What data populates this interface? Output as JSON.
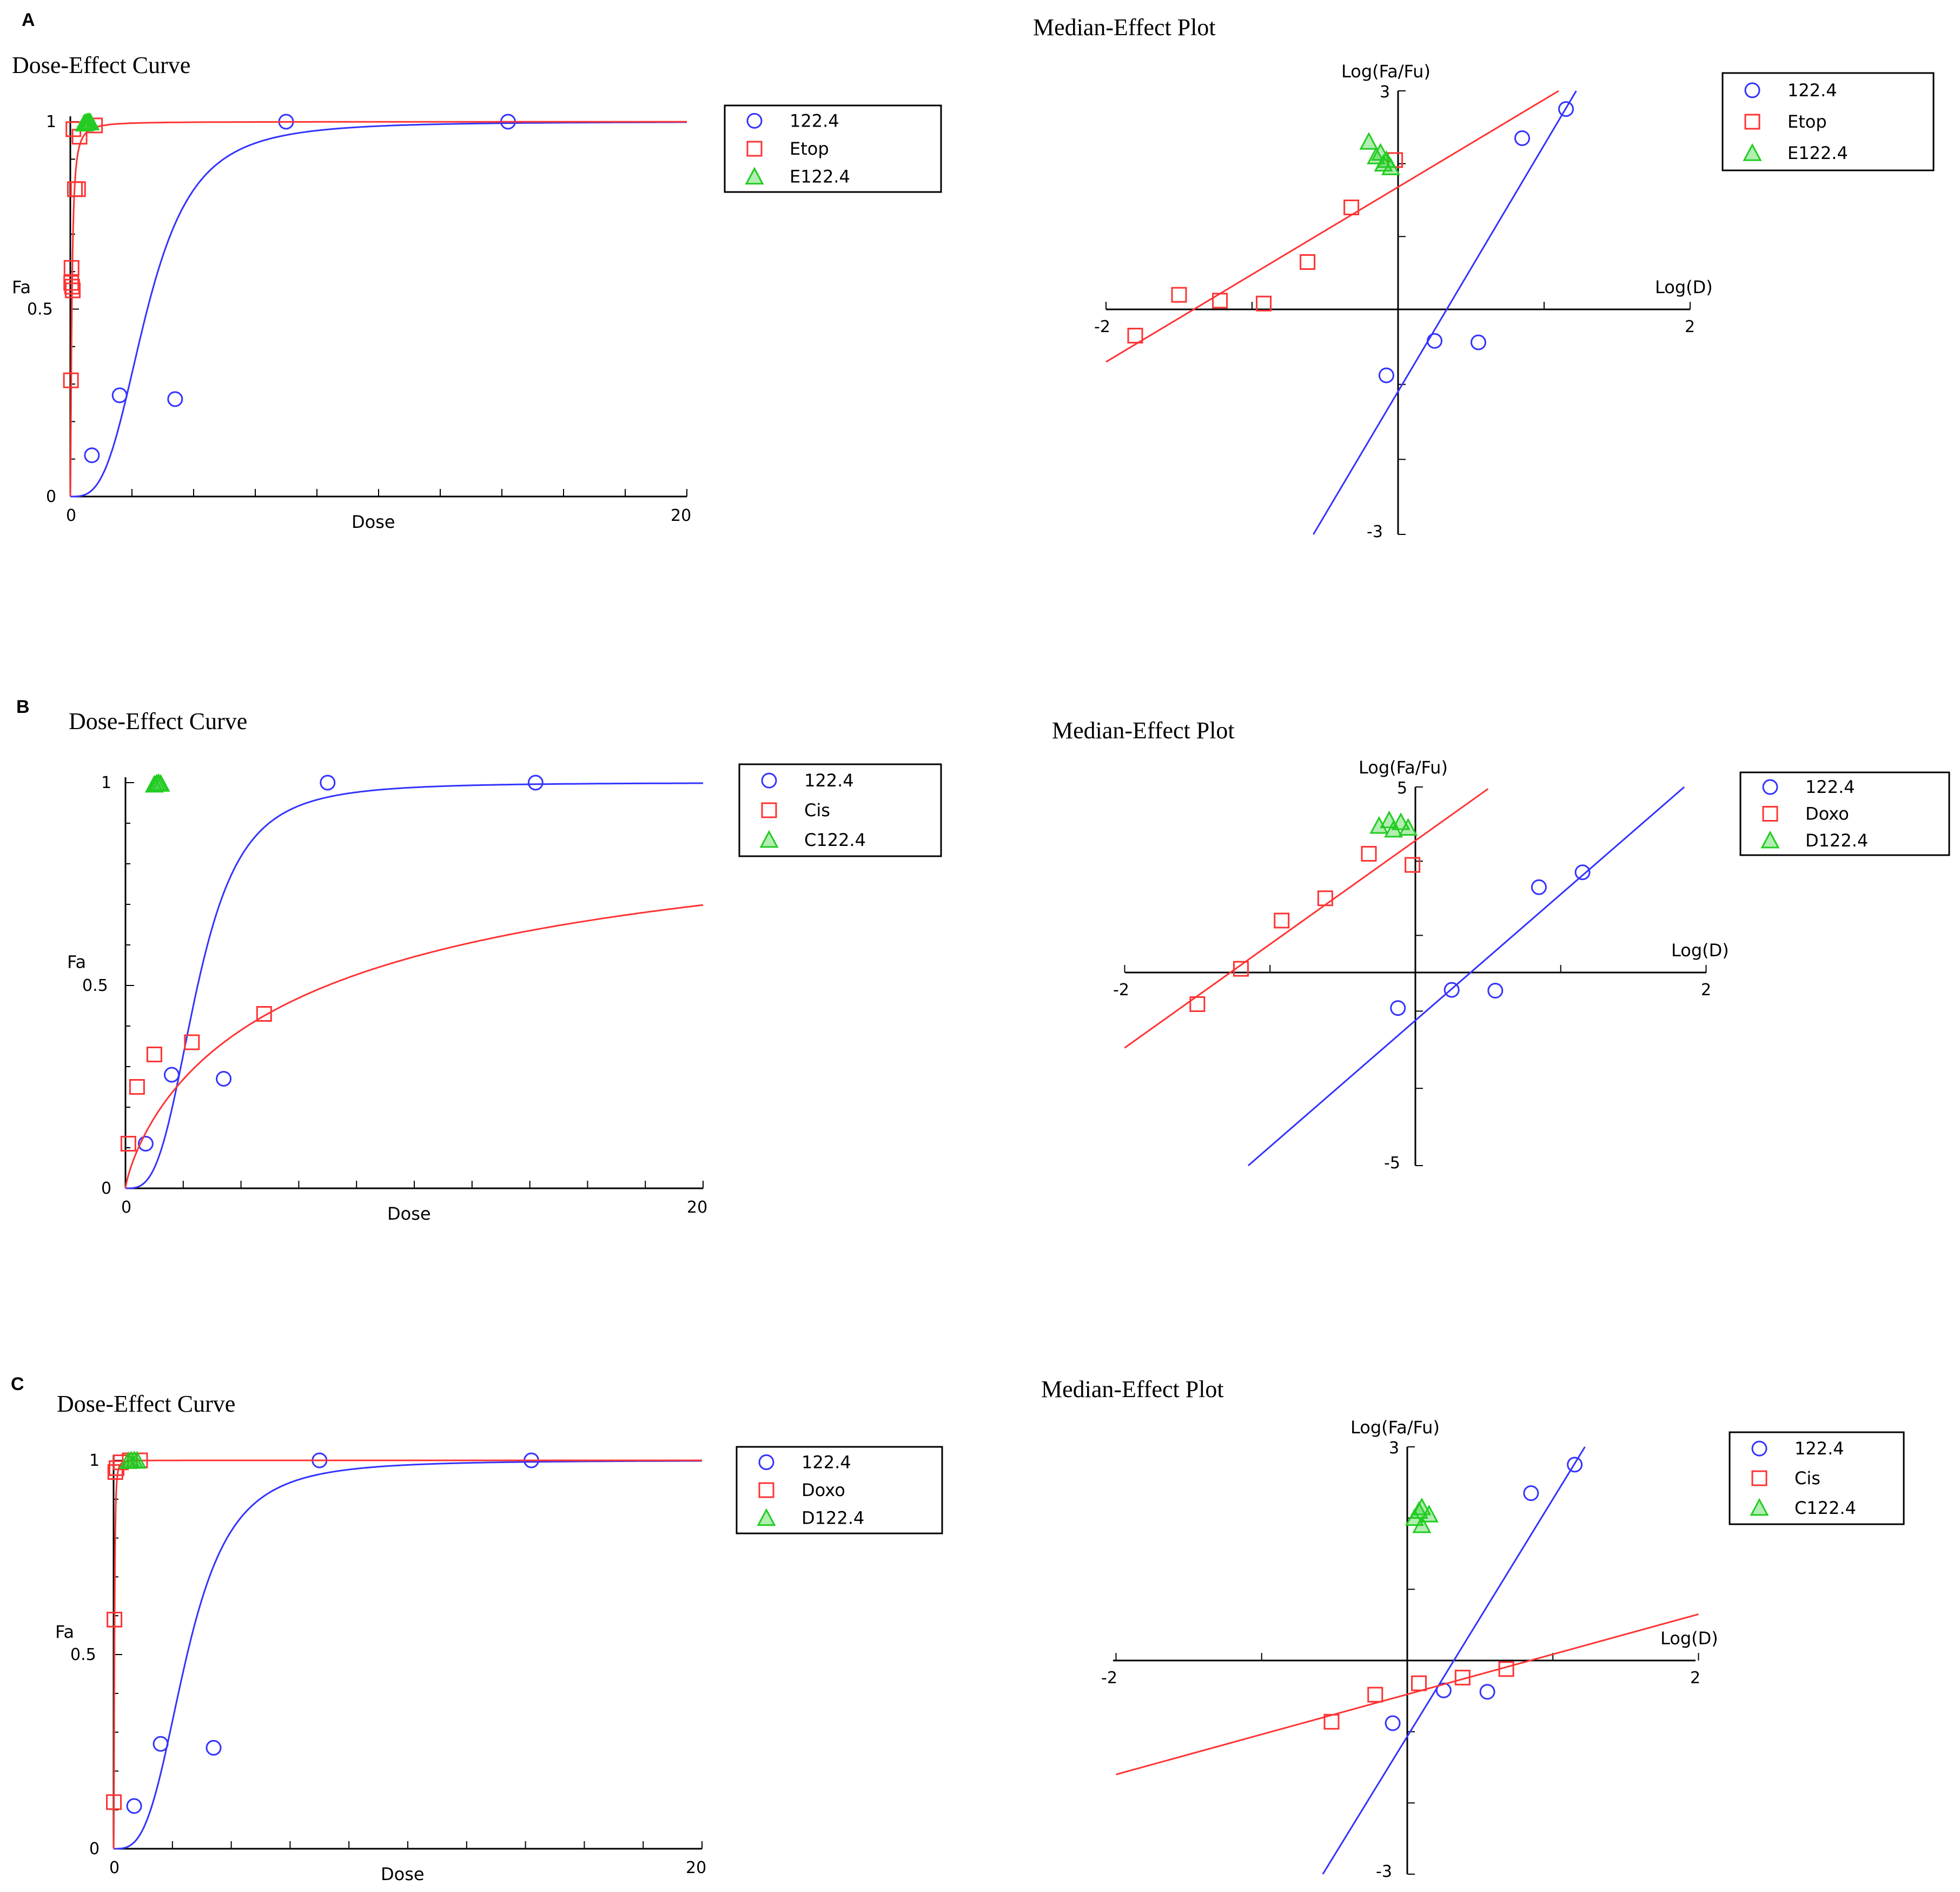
{
  "panels": [
    {
      "letter": "A",
      "dose_effect": {
        "type": "scatter",
        "title": "Dose-Effect Curve",
        "xlabel": "Dose",
        "ylabel": "Fa",
        "xlim": [
          0,
          20
        ],
        "ylim": [
          0,
          1
        ],
        "x_tick_labels": [
          "0",
          "20"
        ],
        "y_tick_labels": [
          "0",
          "0.5",
          "1"
        ],
        "legend": {
          "placement": "right",
          "entries": [
            "122.4",
            "Etop",
            "E122.4"
          ]
        },
        "series": [
          {
            "name": "122.4",
            "color": "#3333ff",
            "marker": "circle",
            "x": [
              0.7,
              1.6,
              3.4,
              7.0,
              14.2
            ],
            "y": [
              0.11,
              0.27,
              0.26,
              1.0,
              1.0
            ],
            "curve": {
              "dm": 2.5,
              "m": 3.2
            }
          },
          {
            "name": "Etop",
            "color": "#ff3333",
            "marker": "square",
            "x": [
              0.02,
              0.03,
              0.04,
              0.06,
              0.08,
              0.1,
              0.15,
              0.25,
              0.3,
              0.8
            ],
            "y": [
              0.31,
              0.57,
              0.61,
              0.56,
              0.55,
              0.98,
              0.82,
              0.82,
              0.96,
              0.99
            ],
            "curve": {
              "dm": 0.05,
              "m": 1.5
            }
          },
          {
            "name": "E122.4",
            "color": "#22cc22",
            "marker": "triangle",
            "x": [
              0.45,
              0.5,
              0.55,
              0.6,
              0.65
            ],
            "y": [
              0.995,
              0.997,
              0.998,
              0.999,
              0.998
            ]
          }
        ]
      },
      "median_effect": {
        "type": "scatter",
        "title": "Median-Effect Plot",
        "xlabel": "Log(D)",
        "ylabel": "Log(Fa/Fu)",
        "xlim": [
          -2,
          2
        ],
        "ylim": [
          -3,
          3
        ],
        "x_tick_labels": [
          "-2",
          "2"
        ],
        "y_tick_labels": [
          "3",
          "-3"
        ],
        "legend": {
          "placement": "top-right",
          "entries": [
            "122.4",
            "Etop",
            "E122.4"
          ]
        },
        "series": [
          {
            "name": "122.4",
            "color": "#3333ff",
            "marker": "circle",
            "x": [
              -0.08,
              0.25,
              0.55,
              0.85,
              1.15
            ],
            "y": [
              -0.88,
              -0.42,
              -0.44,
              2.35,
              2.75
            ],
            "line": {
              "x": [
                -0.58,
                1.22
              ],
              "y": [
                -3.0,
                3.0
              ]
            }
          },
          {
            "name": "Etop",
            "color": "#ff3333",
            "marker": "square",
            "x": [
              -1.8,
              -1.5,
              -1.22,
              -0.92,
              -0.62,
              -0.32,
              -0.02
            ],
            "y": [
              -0.35,
              0.2,
              0.12,
              0.08,
              0.65,
              1.4,
              2.05
            ],
            "line": {
              "x": [
                -2.0,
                1.1
              ],
              "y": [
                -0.7,
                3.0
              ]
            }
          },
          {
            "name": "E122.4",
            "color": "#22cc22",
            "marker": "triangle",
            "x": [
              -0.2,
              -0.15,
              -0.1,
              -0.05,
              -0.12,
              -0.08
            ],
            "y": [
              2.3,
              2.1,
              2.0,
              1.95,
              2.15,
              2.05
            ]
          }
        ]
      }
    },
    {
      "letter": "B",
      "dose_effect": {
        "type": "scatter",
        "title": "Dose-Effect Curve",
        "xlabel": "Dose",
        "ylabel": "Fa",
        "xlim": [
          0,
          20
        ],
        "ylim": [
          0,
          1
        ],
        "x_tick_labels": [
          "0",
          "20"
        ],
        "y_tick_labels": [
          "0",
          "0.5",
          "1"
        ],
        "legend": {
          "placement": "right",
          "entries": [
            "122.4",
            "Cis",
            "C122.4"
          ]
        },
        "series": [
          {
            "name": "122.4",
            "color": "#3333ff",
            "marker": "circle",
            "x": [
              0.7,
              1.6,
              3.4,
              7.0,
              14.2
            ],
            "y": [
              0.11,
              0.28,
              0.27,
              1.0,
              1.0
            ],
            "curve": {
              "dm": 2.5,
              "m": 3.2
            }
          },
          {
            "name": "Cis",
            "color": "#ff3333",
            "marker": "square",
            "x": [
              0.1,
              0.4,
              1.0,
              2.3,
              4.8
            ],
            "y": [
              0.11,
              0.25,
              0.33,
              0.36,
              0.43
            ],
            "curve": {
              "dm": 7.0,
              "m": 0.8
            }
          },
          {
            "name": "C122.4",
            "color": "#22cc22",
            "marker": "triangle",
            "x": [
              1.0,
              1.08,
              1.15,
              1.22
            ],
            "y": [
              0.995,
              0.998,
              0.999,
              0.997
            ]
          }
        ]
      },
      "median_effect": {
        "type": "scatter",
        "title": "Median-Effect Plot",
        "xlabel": "Log(D)",
        "ylabel": "Log(Fa/Fu)",
        "xlim": [
          -2,
          2
        ],
        "ylim": [
          -5,
          5
        ],
        "x_tick_labels": [
          "-2",
          "2"
        ],
        "y_tick_labels": [
          "5",
          "-5"
        ],
        "legend": {
          "placement": "top-right",
          "entries": [
            "122.4",
            "Doxo",
            "D122.4"
          ]
        },
        "series": [
          {
            "name": "122.4",
            "color": "#3333ff",
            "marker": "circle",
            "x": [
              -0.12,
              0.25,
              0.55,
              0.85,
              1.15
            ],
            "y": [
              -0.92,
              -0.45,
              -0.47,
              2.3,
              2.7
            ],
            "line": {
              "x": [
                -1.15,
                1.85
              ],
              "y": [
                -5.0,
                5.0
              ]
            }
          },
          {
            "name": "Doxo",
            "color": "#ff3333",
            "marker": "square",
            "x": [
              -1.5,
              -1.2,
              -0.92,
              -0.62,
              -0.32,
              -0.02
            ],
            "y": [
              -0.82,
              0.1,
              1.4,
              2.0,
              3.2,
              2.9
            ],
            "line": {
              "x": [
                -2.0,
                0.5
              ],
              "y": [
                -1.95,
                4.95
              ]
            }
          },
          {
            "name": "D122.4",
            "color": "#22cc22",
            "marker": "triangle",
            "x": [
              -0.25,
              -0.18,
              -0.1,
              -0.05,
              -0.15
            ],
            "y": [
              3.95,
              4.1,
              4.05,
              3.9,
              3.85
            ]
          }
        ]
      }
    },
    {
      "letter": "C",
      "dose_effect": {
        "type": "scatter",
        "title": "Dose-Effect Curve",
        "xlabel": "Dose",
        "ylabel": "Fa",
        "xlim": [
          0,
          20
        ],
        "ylim": [
          0,
          1
        ],
        "x_tick_labels": [
          "0",
          "20"
        ],
        "y_tick_labels": [
          "0",
          "0.5",
          "1"
        ],
        "legend": {
          "placement": "right",
          "entries": [
            "122.4",
            "Doxo",
            "D122.4"
          ]
        },
        "series": [
          {
            "name": "122.4",
            "color": "#3333ff",
            "marker": "circle",
            "x": [
              0.7,
              1.6,
              3.4,
              7.0,
              14.2
            ],
            "y": [
              0.11,
              0.27,
              0.26,
              1.0,
              1.0
            ],
            "curve": {
              "dm": 2.5,
              "m": 3.2
            }
          },
          {
            "name": "Doxo",
            "color": "#ff3333",
            "marker": "square",
            "x": [
              0.01,
              0.03,
              0.06,
              0.1,
              0.25,
              0.55,
              0.9
            ],
            "y": [
              0.12,
              0.59,
              0.97,
              0.98,
              0.995,
              1.0,
              1.0
            ],
            "curve": {
              "dm": 0.03,
              "m": 2.2
            }
          },
          {
            "name": "D122.4",
            "color": "#22cc22",
            "marker": "triangle",
            "x": [
              0.5,
              0.6,
              0.7,
              0.8
            ],
            "y": [
              0.998,
              0.999,
              1.0,
              0.999
            ]
          }
        ]
      },
      "median_effect": {
        "type": "scatter",
        "title": "Median-Effect Plot",
        "xlabel": "Log(D)",
        "ylabel": "Log(Fa/Fu)",
        "xlim": [
          -2,
          2
        ],
        "ylim": [
          -3,
          3
        ],
        "x_tick_labels": [
          "-2",
          "2"
        ],
        "y_tick_labels": [
          "3",
          "-3"
        ],
        "legend": {
          "placement": "top-right",
          "entries": [
            "122.4",
            "Cis",
            "C122.4"
          ]
        },
        "series": [
          {
            "name": "122.4",
            "color": "#3333ff",
            "marker": "circle",
            "x": [
              -0.1,
              0.25,
              0.55,
              0.85,
              1.15
            ],
            "y": [
              -0.88,
              -0.42,
              -0.44,
              2.35,
              2.75
            ],
            "line": {
              "x": [
                -0.58,
                1.22
              ],
              "y": [
                -3.0,
                3.0
              ]
            }
          },
          {
            "name": "Cis",
            "color": "#ff3333",
            "marker": "square",
            "x": [
              -0.52,
              -0.22,
              0.08,
              0.38,
              0.68
            ],
            "y": [
              -0.86,
              -0.48,
              -0.32,
              -0.24,
              -0.12
            ],
            "line": {
              "x": [
                -2.0,
                2.0
              ],
              "y": [
                -1.6,
                0.65
              ]
            }
          },
          {
            "name": "C122.4",
            "color": "#22cc22",
            "marker": "triangle",
            "x": [
              0.05,
              0.1,
              0.15,
              0.1,
              0.08
            ],
            "y": [
              2.0,
              2.15,
              2.05,
              1.9,
              2.1
            ]
          }
        ]
      }
    }
  ]
}
